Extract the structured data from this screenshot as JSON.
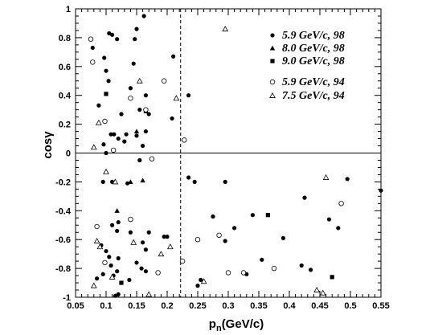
{
  "chart_data": {
    "type": "scatter",
    "title": "",
    "xlabel": "p_n(GeV/c)",
    "xlabel_main": "p",
    "xlabel_sub": "n",
    "xlabel_unit": "(GeV/c)",
    "ylabel": "cosγ",
    "xlim": [
      0.05,
      0.55
    ],
    "ylim": [
      -1,
      1
    ],
    "xticks": [
      "0.05",
      "0.1",
      "0.15",
      "0.2",
      "0.25",
      "0.3",
      "0.35",
      "0.4",
      "0.45",
      "0.5",
      "0.55"
    ],
    "yticks": [
      "-1",
      "-0.8",
      "-0.6",
      "-0.4",
      "-0.2",
      "0",
      "0.2",
      "0.4",
      "0.6",
      "0.8",
      "1"
    ],
    "hline_y": 0,
    "vline_x": 0.222,
    "legend_position": "top-right",
    "series": [
      {
        "name": "5.9 GeV/c, 98",
        "marker": "filled-circle",
        "points": [
          [
            0.078,
            0.73
          ],
          [
            0.088,
            0.33
          ],
          [
            0.097,
            0.66
          ],
          [
            0.105,
            0.83
          ],
          [
            0.11,
            0.82
          ],
          [
            0.118,
            0.79
          ],
          [
            0.1,
            0.57
          ],
          [
            0.104,
            0.5
          ],
          [
            0.096,
            0.06
          ],
          [
            0.108,
            0.13
          ],
          [
            0.113,
            0.13
          ],
          [
            0.12,
            0.1
          ],
          [
            0.1,
            0.0
          ],
          [
            0.125,
            0.27
          ],
          [
            0.13,
            0.08
          ],
          [
            0.133,
            0.13
          ],
          [
            0.14,
            0.45
          ],
          [
            0.145,
            0.62
          ],
          [
            0.147,
            0.79
          ],
          [
            0.15,
            0.86
          ],
          [
            0.155,
            0.3
          ],
          [
            0.162,
            0.95
          ],
          [
            0.165,
            0.4
          ],
          [
            0.17,
            0.27
          ],
          [
            0.15,
            0.12
          ],
          [
            0.165,
            0.15
          ],
          [
            0.16,
            0.05
          ],
          [
            0.21,
            0.67
          ],
          [
            0.208,
            0.24
          ],
          [
            0.235,
            0.4
          ],
          [
            0.095,
            -0.2
          ],
          [
            0.11,
            -0.2
          ],
          [
            0.11,
            -0.5
          ],
          [
            0.12,
            -0.48
          ],
          [
            0.118,
            -0.54
          ],
          [
            0.135,
            -0.21
          ],
          [
            0.14,
            -0.55
          ],
          [
            0.16,
            -0.62
          ],
          [
            0.165,
            -0.67
          ],
          [
            0.17,
            -0.55
          ],
          [
            0.195,
            -0.58
          ],
          [
            0.2,
            -0.58
          ],
          [
            0.155,
            -0.05
          ],
          [
            0.092,
            -0.64
          ],
          [
            0.1,
            -0.68
          ],
          [
            0.105,
            -0.72
          ],
          [
            0.112,
            -0.85
          ],
          [
            0.108,
            -0.78
          ],
          [
            0.12,
            -0.73
          ],
          [
            0.118,
            -0.82
          ],
          [
            0.095,
            -0.84
          ],
          [
            0.085,
            -0.87
          ],
          [
            0.15,
            -0.76
          ],
          [
            0.158,
            -0.8
          ],
          [
            0.165,
            -0.82
          ],
          [
            0.138,
            -0.88
          ],
          [
            0.12,
            -0.98
          ],
          [
            0.115,
            -0.99
          ],
          [
            0.235,
            -0.17
          ],
          [
            0.245,
            -0.2
          ],
          [
            0.275,
            -0.44
          ],
          [
            0.295,
            -0.2
          ],
          [
            0.31,
            -0.52
          ],
          [
            0.355,
            -0.74
          ],
          [
            0.34,
            -0.43
          ],
          [
            0.39,
            -0.59
          ],
          [
            0.295,
            -0.61
          ],
          [
            0.42,
            -0.78
          ],
          [
            0.425,
            -0.31
          ],
          [
            0.435,
            -0.81
          ],
          [
            0.465,
            -0.46
          ],
          [
            0.48,
            -0.52
          ],
          [
            0.495,
            -0.18
          ],
          [
            0.55,
            -0.26
          ],
          [
            0.33,
            -0.84
          ],
          [
            0.255,
            -0.88
          ],
          [
            0.25,
            -0.92
          ]
        ]
      },
      {
        "name": "8.0 GeV/c, 98",
        "marker": "filled-triangle",
        "points": [
          [
            0.118,
            -0.4
          ],
          [
            0.15,
            0.15
          ],
          [
            0.14,
            -0.2
          ],
          [
            0.16,
            -0.19
          ]
        ]
      },
      {
        "name": "9.0 GeV/c, 98",
        "marker": "filled-square",
        "points": [
          [
            0.1,
            0.41
          ],
          [
            0.165,
            0.29
          ],
          [
            0.125,
            -0.9
          ],
          [
            0.365,
            -0.43
          ],
          [
            0.47,
            -0.86
          ]
        ]
      },
      {
        "name": "5.9 GeV/c, 94",
        "marker": "open-circle",
        "points": [
          [
            0.075,
            0.79
          ],
          [
            0.078,
            0.63
          ],
          [
            0.098,
            0.22
          ],
          [
            0.112,
            0.02
          ],
          [
            0.14,
            0.38
          ],
          [
            0.165,
            0.3
          ],
          [
            0.195,
            0.5
          ],
          [
            0.175,
            -0.04
          ],
          [
            0.228,
            0.09
          ],
          [
            0.085,
            -0.51
          ],
          [
            0.098,
            -0.76
          ],
          [
            0.14,
            -0.46
          ],
          [
            0.185,
            -0.83
          ],
          [
            0.225,
            -0.75
          ],
          [
            0.25,
            -0.6
          ],
          [
            0.285,
            -0.57
          ],
          [
            0.3,
            -0.83
          ],
          [
            0.325,
            -0.83
          ],
          [
            0.375,
            -0.8
          ],
          [
            0.485,
            -0.35
          ]
        ]
      },
      {
        "name": "7.5 GeV/c, 94",
        "marker": "open-triangle",
        "points": [
          [
            0.08,
            0.04
          ],
          [
            0.088,
            0.21
          ],
          [
            0.1,
            -0.13
          ],
          [
            0.115,
            -0.2
          ],
          [
            0.155,
            0.5
          ],
          [
            0.215,
            0.38
          ],
          [
            0.295,
            0.86
          ],
          [
            0.085,
            -0.61
          ],
          [
            0.09,
            -0.65
          ],
          [
            0.11,
            -0.86
          ],
          [
            0.145,
            -0.62
          ],
          [
            0.19,
            -0.7
          ],
          [
            0.205,
            -0.65
          ],
          [
            0.17,
            -0.98
          ],
          [
            0.26,
            -0.89
          ],
          [
            0.08,
            -0.92
          ],
          [
            0.445,
            -0.95
          ],
          [
            0.455,
            -0.97
          ],
          [
            0.46,
            -0.17
          ]
        ]
      }
    ]
  }
}
